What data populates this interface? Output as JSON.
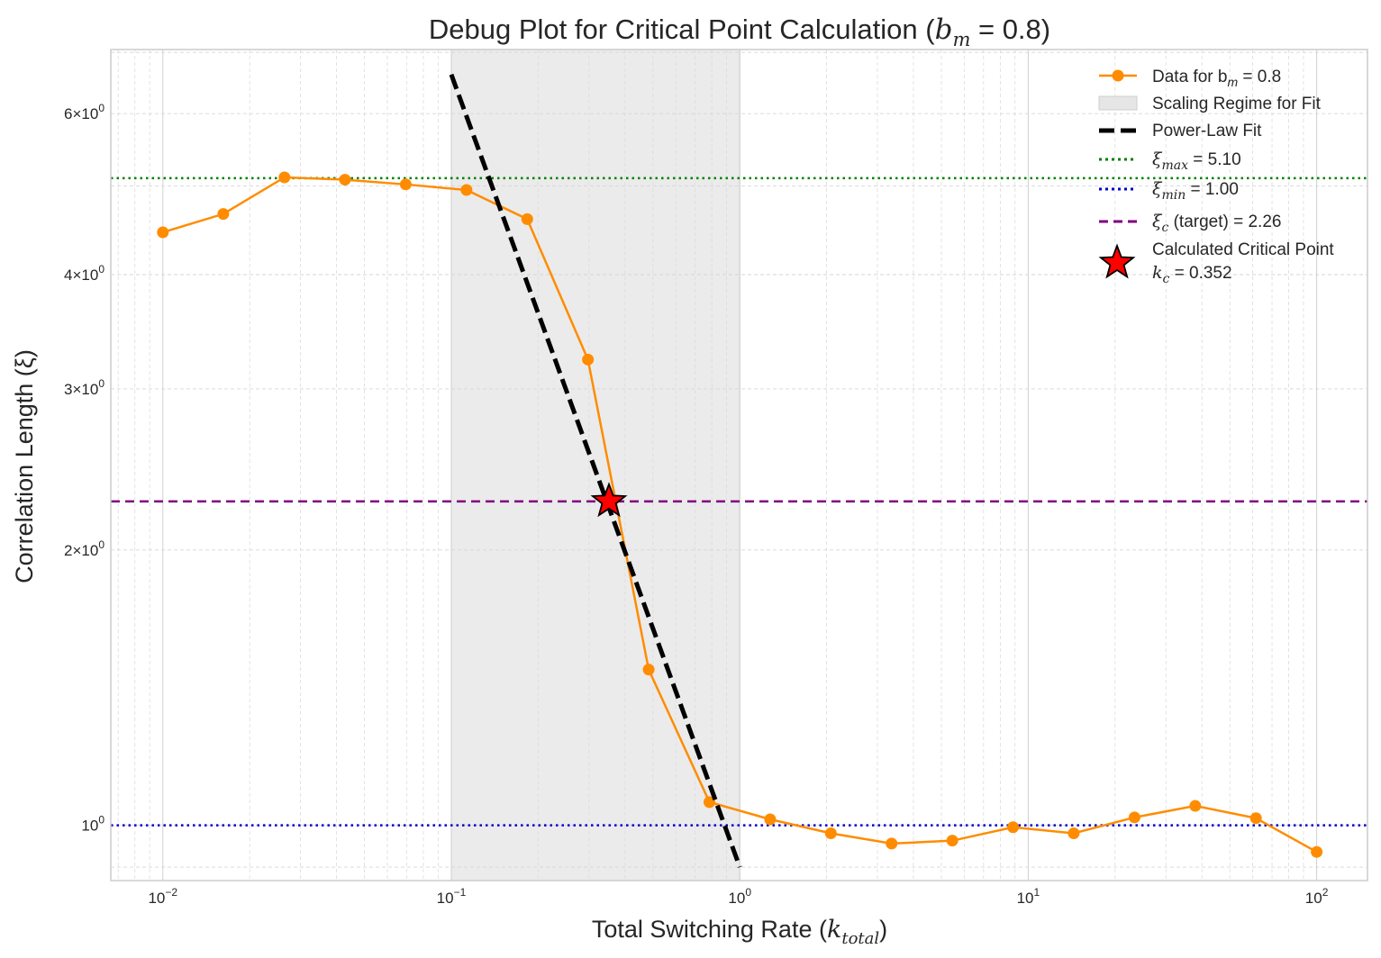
{
  "chart_data": {
    "type": "line",
    "title_prefix": "Debug Plot for Critical Point Calculation (",
    "title_math_var": "b",
    "title_math_sub": "m",
    "title_math_rest": " = 0.8)",
    "xlabel_prefix": "Total Switching Rate (",
    "xlabel_var": "k",
    "xlabel_sub": "total",
    "xlabel_suffix": ")",
    "ylabel": "Correlation Length (ξ)",
    "x_scale": "log",
    "y_scale": "log",
    "xlim": [
      0.0066,
      150
    ],
    "ylim": [
      0.87,
      7.05
    ],
    "x_ticks": [
      {
        "value": 0.01,
        "base": "10",
        "exp": "−2"
      },
      {
        "value": 0.1,
        "base": "10",
        "exp": "−1"
      },
      {
        "value": 1,
        "base": "10",
        "exp": "0"
      },
      {
        "value": 10,
        "base": "10",
        "exp": "1"
      },
      {
        "value": 100,
        "base": "10",
        "exp": "2"
      }
    ],
    "y_ticks": [
      {
        "value": 1,
        "label": "10",
        "exp": "0"
      },
      {
        "value": 2,
        "label": "2×10",
        "exp": "0"
      },
      {
        "value": 3,
        "label": "3×10",
        "exp": "0"
      },
      {
        "value": 4,
        "label": "4×10",
        "exp": "0"
      },
      {
        "value": 6,
        "label": "6×10",
        "exp": "0"
      }
    ],
    "series": [
      {
        "name": "Data for b_m = 0.8",
        "color": "#ff8c00",
        "x": [
          0.01,
          0.0162,
          0.0264,
          0.0428,
          0.0695,
          0.1129,
          0.1833,
          0.2976,
          0.4833,
          0.7848,
          1.2743,
          2.069,
          3.36,
          5.456,
          8.859,
          14.38,
          23.36,
          37.93,
          61.58,
          100
        ],
        "y": [
          4.45,
          4.66,
          5.11,
          5.08,
          5.02,
          4.95,
          4.6,
          3.23,
          1.48,
          1.06,
          1.015,
          0.98,
          0.955,
          0.962,
          0.995,
          0.98,
          1.02,
          1.05,
          1.018,
          0.935
        ]
      }
    ],
    "fit_line": {
      "name": "Power-Law Fit",
      "x": [
        0.1,
        1.0
      ],
      "y": [
        6.62,
        0.9
      ],
      "color": "#000000"
    },
    "scaling_regime": {
      "name": "Scaling Regime for Fit",
      "xmin": 0.1,
      "xmax": 1.0,
      "color": "#e0e0e0"
    },
    "hlines": [
      {
        "name": "xi_max",
        "value": 5.1,
        "color": "#008000",
        "style": "dotted"
      },
      {
        "name": "xi_min",
        "value": 1.0,
        "color": "#0000cd",
        "style": "dotted"
      },
      {
        "name": "xi_c",
        "value": 2.26,
        "color": "#800080",
        "style": "dashed"
      }
    ],
    "critical_point": {
      "x": 0.352,
      "y": 2.26,
      "color": "#ff0000"
    },
    "legend": {
      "position": "top-right",
      "entries": [
        {
          "key": "data",
          "prefix": "Data for b",
          "sub": "m",
          "suffix": " = 0.8"
        },
        {
          "key": "regime",
          "text": "Scaling Regime for Fit"
        },
        {
          "key": "fit",
          "text": "Power-Law Fit"
        },
        {
          "key": "ximax",
          "var": "ξ",
          "sub": "max",
          "suffix": " = 5.10"
        },
        {
          "key": "ximin",
          "var": "ξ",
          "sub": "min",
          "suffix": " = 1.00"
        },
        {
          "key": "xic",
          "var": "ξ",
          "sub": "c",
          "suffix": " (target) = 2.26"
        },
        {
          "key": "crit",
          "line1": "Calculated Critical Point",
          "var": "k",
          "sub": "c",
          "suffix": " = 0.352"
        }
      ]
    }
  }
}
